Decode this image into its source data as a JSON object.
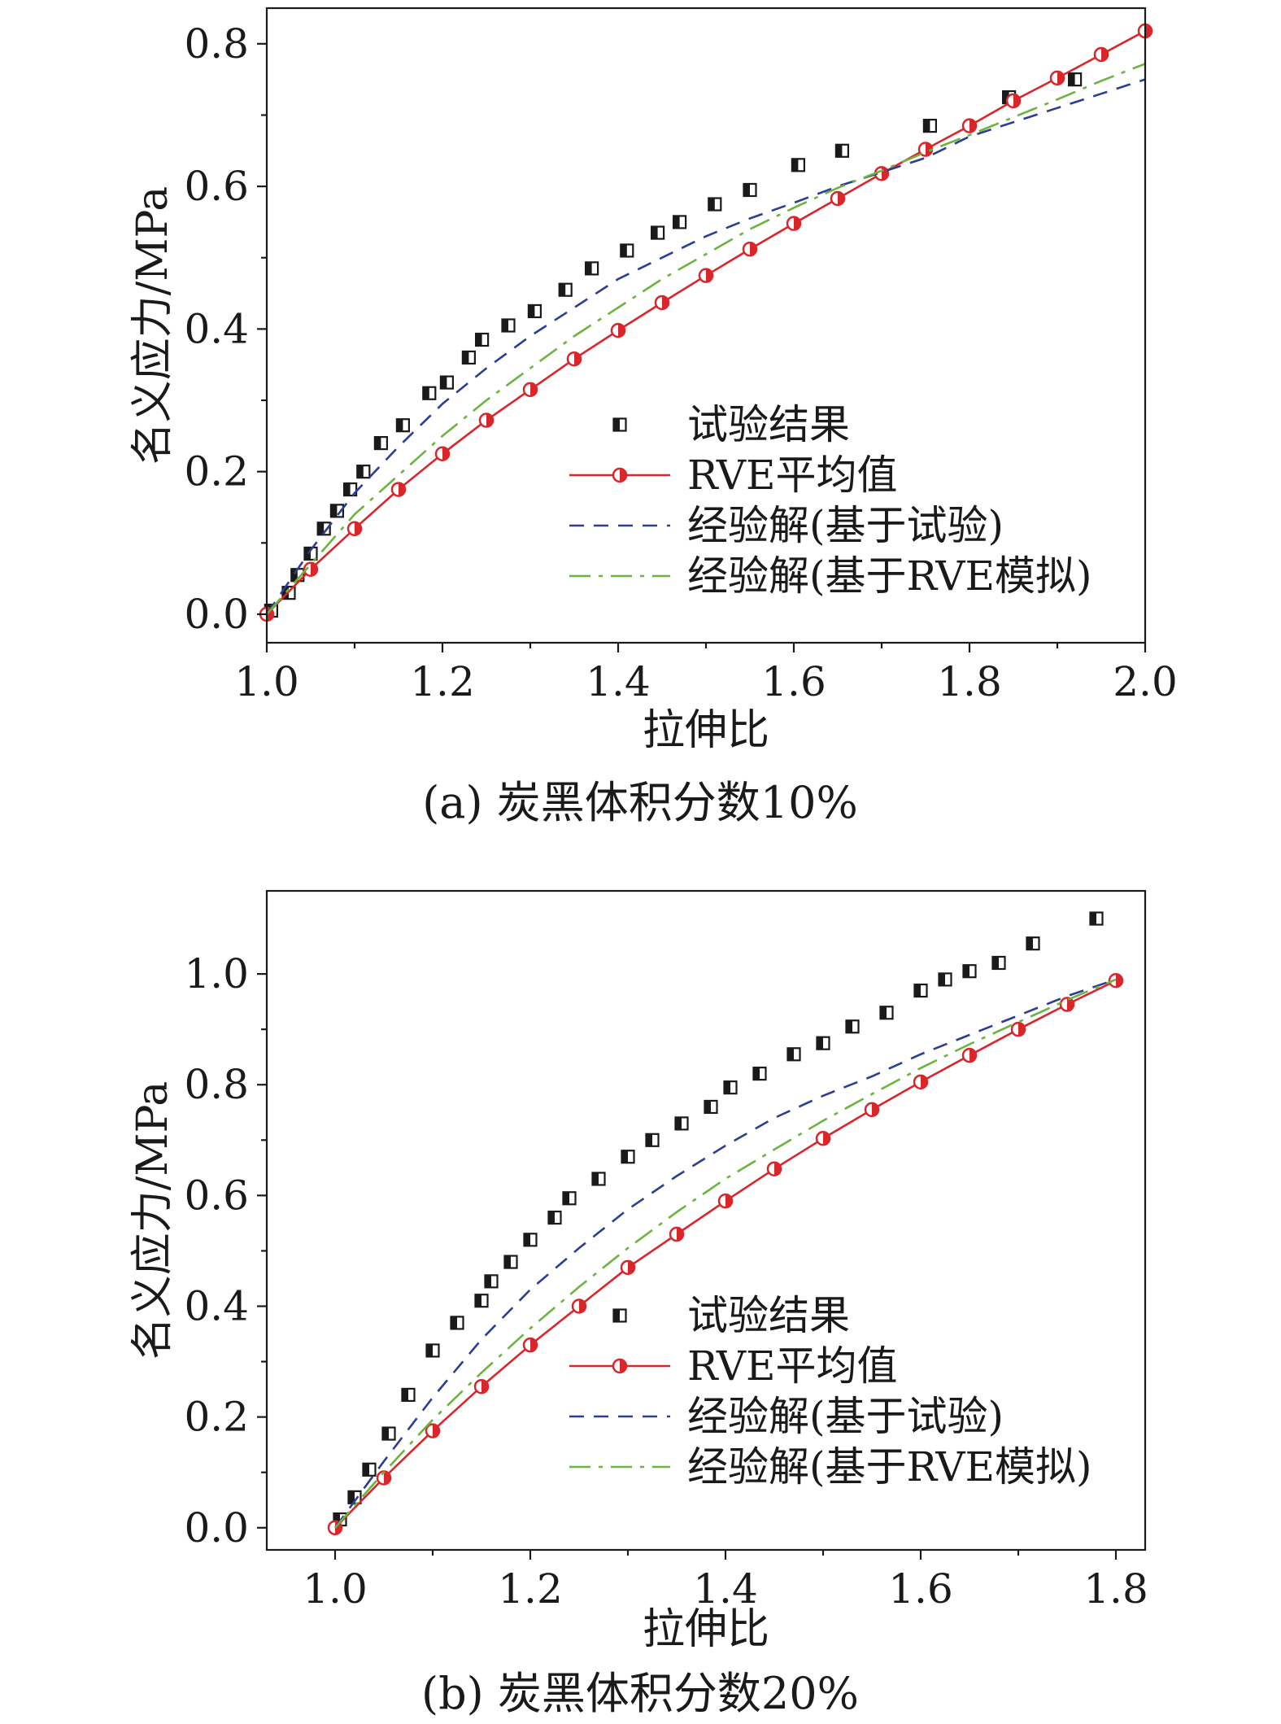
{
  "chart_data": [
    {
      "type": "line",
      "caption": "(a) 炭黑体积分数10%",
      "xlabel": "拉伸比",
      "ylabel": "名义应力/MPa",
      "xlim": [
        1.0,
        2.0
      ],
      "ylim": [
        -0.04,
        0.85
      ],
      "xticks": [
        1.0,
        1.2,
        1.4,
        1.6,
        1.8,
        2.0
      ],
      "xtick_labels": [
        "1.0",
        "1.2",
        "1.4",
        "1.6",
        "1.8",
        "2.0"
      ],
      "yticks": [
        0.0,
        0.2,
        0.4,
        0.6,
        0.8
      ],
      "ytick_labels": [
        "0.0",
        "0.2",
        "0.4",
        "0.6",
        "0.8"
      ],
      "legend_position": "lower-right",
      "series": [
        {
          "name": "试验结果",
          "style": "square-markers",
          "color": "#1a1a1a",
          "x": [
            1.005,
            1.025,
            1.035,
            1.05,
            1.065,
            1.08,
            1.095,
            1.11,
            1.13,
            1.155,
            1.185,
            1.205,
            1.23,
            1.245,
            1.275,
            1.305,
            1.34,
            1.37,
            1.41,
            1.445,
            1.47,
            1.51,
            1.55,
            1.605,
            1.655,
            1.755,
            1.845,
            1.92
          ],
          "y": [
            0.005,
            0.03,
            0.055,
            0.085,
            0.12,
            0.145,
            0.175,
            0.2,
            0.24,
            0.265,
            0.31,
            0.325,
            0.36,
            0.385,
            0.405,
            0.425,
            0.455,
            0.485,
            0.51,
            0.535,
            0.55,
            0.575,
            0.595,
            0.63,
            0.65,
            0.685,
            0.725,
            0.75
          ]
        },
        {
          "name": "RVE平均值",
          "style": "solid-circle-markers",
          "color": "#d9262b",
          "x": [
            1.0,
            1.05,
            1.1,
            1.15,
            1.2,
            1.25,
            1.3,
            1.35,
            1.4,
            1.45,
            1.5,
            1.55,
            1.6,
            1.65,
            1.7,
            1.75,
            1.8,
            1.85,
            1.9,
            1.95,
            2.0
          ],
          "y": [
            0.0,
            0.063,
            0.12,
            0.175,
            0.225,
            0.272,
            0.315,
            0.358,
            0.398,
            0.437,
            0.475,
            0.512,
            0.548,
            0.583,
            0.618,
            0.652,
            0.685,
            0.72,
            0.752,
            0.785,
            0.818
          ]
        },
        {
          "name": "经验解(基于试验)",
          "style": "dashed",
          "color": "#2c3e93",
          "x": [
            1.0,
            1.05,
            1.1,
            1.15,
            1.2,
            1.25,
            1.3,
            1.35,
            1.4,
            1.45,
            1.5,
            1.55,
            1.6,
            1.65,
            1.7,
            1.75,
            1.8,
            1.85,
            1.9,
            1.95,
            2.0
          ],
          "y": [
            0.0,
            0.09,
            0.17,
            0.235,
            0.295,
            0.345,
            0.39,
            0.43,
            0.47,
            0.5,
            0.53,
            0.555,
            0.577,
            0.6,
            0.62,
            0.64,
            0.67,
            0.69,
            0.71,
            0.73,
            0.75
          ]
        },
        {
          "name": "经验解(基于RVE模拟)",
          "style": "dash-dot",
          "color": "#6db33f",
          "x": [
            1.0,
            1.05,
            1.1,
            1.15,
            1.2,
            1.25,
            1.3,
            1.35,
            1.4,
            1.45,
            1.5,
            1.55,
            1.6,
            1.65,
            1.7,
            1.75,
            1.8,
            1.85,
            1.9,
            1.95,
            2.0
          ],
          "y": [
            0.0,
            0.07,
            0.14,
            0.195,
            0.25,
            0.3,
            0.345,
            0.39,
            0.43,
            0.47,
            0.505,
            0.54,
            0.57,
            0.598,
            0.622,
            0.648,
            0.672,
            0.697,
            0.722,
            0.748,
            0.772
          ]
        }
      ]
    },
    {
      "type": "line",
      "caption": "(b) 炭黑体积分数20%",
      "xlabel": "拉伸比",
      "ylabel": "名义应力/MPa",
      "xlim": [
        0.93,
        1.83
      ],
      "ylim": [
        -0.04,
        1.15
      ],
      "xticks": [
        1.0,
        1.2,
        1.4,
        1.6,
        1.8
      ],
      "xtick_labels": [
        "1.0",
        "1.2",
        "1.4",
        "1.6",
        "1.8"
      ],
      "yticks": [
        0.0,
        0.2,
        0.4,
        0.6,
        0.8,
        1.0
      ],
      "ytick_labels": [
        "0.0",
        "0.2",
        "0.4",
        "0.6",
        "0.8",
        "1.0"
      ],
      "legend_position": "lower-right",
      "series": [
        {
          "name": "试验结果",
          "style": "square-markers",
          "color": "#1a1a1a",
          "x": [
            1.005,
            1.02,
            1.035,
            1.055,
            1.075,
            1.1,
            1.125,
            1.15,
            1.16,
            1.18,
            1.2,
            1.225,
            1.24,
            1.27,
            1.3,
            1.325,
            1.355,
            1.385,
            1.405,
            1.435,
            1.47,
            1.5,
            1.53,
            1.565,
            1.6,
            1.625,
            1.65,
            1.68,
            1.715,
            1.78
          ],
          "y": [
            0.015,
            0.055,
            0.105,
            0.17,
            0.24,
            0.32,
            0.37,
            0.41,
            0.445,
            0.48,
            0.52,
            0.56,
            0.595,
            0.63,
            0.67,
            0.7,
            0.73,
            0.76,
            0.795,
            0.82,
            0.855,
            0.875,
            0.905,
            0.93,
            0.97,
            0.99,
            1.005,
            1.02,
            1.055,
            1.1
          ]
        },
        {
          "name": "RVE平均值",
          "style": "solid-circle-markers",
          "color": "#d9262b",
          "x": [
            1.0,
            1.05,
            1.1,
            1.15,
            1.2,
            1.25,
            1.3,
            1.35,
            1.4,
            1.45,
            1.5,
            1.55,
            1.6,
            1.65,
            1.7,
            1.75,
            1.8
          ],
          "y": [
            0.0,
            0.09,
            0.175,
            0.255,
            0.33,
            0.4,
            0.47,
            0.53,
            0.59,
            0.648,
            0.703,
            0.755,
            0.805,
            0.853,
            0.9,
            0.945,
            0.988
          ]
        },
        {
          "name": "经验解(基于试验)",
          "style": "dashed",
          "color": "#2c3e93",
          "x": [
            1.0,
            1.05,
            1.1,
            1.15,
            1.2,
            1.25,
            1.3,
            1.35,
            1.4,
            1.45,
            1.5,
            1.55,
            1.6,
            1.65,
            1.7,
            1.75,
            1.8
          ],
          "y": [
            0.0,
            0.12,
            0.235,
            0.34,
            0.43,
            0.505,
            0.575,
            0.635,
            0.69,
            0.74,
            0.78,
            0.815,
            0.855,
            0.89,
            0.925,
            0.96,
            0.99
          ]
        },
        {
          "name": "经验解(基于RVE模拟)",
          "style": "dash-dot",
          "color": "#6db33f",
          "x": [
            1.0,
            1.05,
            1.1,
            1.15,
            1.2,
            1.25,
            1.3,
            1.35,
            1.4,
            1.45,
            1.5,
            1.55,
            1.6,
            1.65,
            1.7,
            1.75,
            1.8
          ],
          "y": [
            0.0,
            0.1,
            0.195,
            0.28,
            0.36,
            0.435,
            0.505,
            0.57,
            0.63,
            0.683,
            0.735,
            0.783,
            0.83,
            0.873,
            0.913,
            0.953,
            0.99
          ]
        }
      ]
    }
  ]
}
